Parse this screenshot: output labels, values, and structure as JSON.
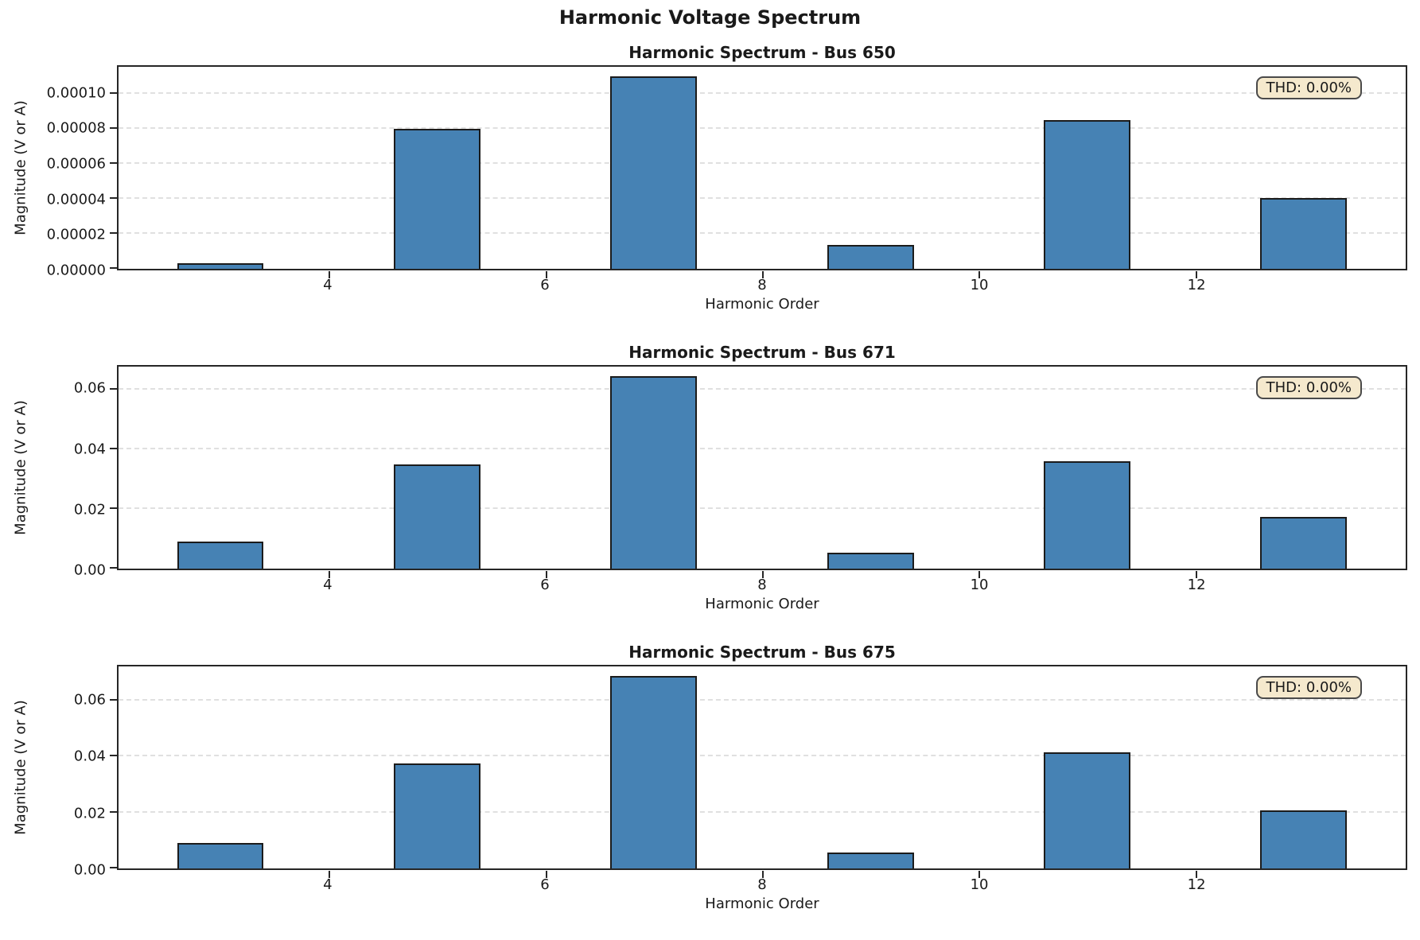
{
  "figure_title": "Harmonic Voltage Spectrum",
  "colors": {
    "bar_fill": "#4682b4",
    "bar_edge": "#1b1b1b",
    "grid": "#e0e0e0",
    "spine": "#262626",
    "thd_bg": "#f5e9cd",
    "thd_border": "#4a4a4a",
    "text": "#1a1a1a",
    "background": "#ffffff"
  },
  "chart_data": [
    {
      "type": "bar",
      "title": "Harmonic Spectrum - Bus 650",
      "xlabel": "Harmonic Order",
      "ylabel": "Magnitude (V or A)",
      "annotation": "THD: 0.00%",
      "x": [
        3,
        5,
        7,
        9,
        11,
        13
      ],
      "values": [
        3.4e-06,
        8e-05,
        0.00011,
        1.35e-05,
        8.5e-05,
        4.05e-05
      ],
      "bar_width": 0.8,
      "xlim": [
        2.06,
        13.94
      ],
      "ylim": [
        0,
        0.0001155
      ],
      "xticks": [
        4,
        6,
        8,
        10,
        12
      ],
      "yticks": [
        0,
        2e-05,
        4e-05,
        6e-05,
        8e-05,
        0.0001
      ],
      "ytick_labels": [
        "0.00000",
        "0.00002",
        "0.00004",
        "0.00006",
        "0.00008",
        "0.00010"
      ],
      "grid": "horizontal-dashed",
      "legend": "none"
    },
    {
      "type": "bar",
      "title": "Harmonic Spectrum - Bus 671",
      "xlabel": "Harmonic Order",
      "ylabel": "Magnitude (V or A)",
      "annotation": "THD: 0.00%",
      "x": [
        3,
        5,
        7,
        9,
        11,
        13
      ],
      "values": [
        0.009,
        0.035,
        0.0645,
        0.0053,
        0.036,
        0.0173
      ],
      "bar_width": 0.8,
      "xlim": [
        2.06,
        13.94
      ],
      "ylim": [
        0,
        0.0677
      ],
      "xticks": [
        4,
        6,
        8,
        10,
        12
      ],
      "yticks": [
        0,
        0.02,
        0.04,
        0.06
      ],
      "ytick_labels": [
        "0.00",
        "0.02",
        "0.04",
        "0.06"
      ],
      "grid": "horizontal-dashed",
      "legend": "none"
    },
    {
      "type": "bar",
      "title": "Harmonic Spectrum - Bus 675",
      "xlabel": "Harmonic Order",
      "ylabel": "Magnitude (V or A)",
      "annotation": "THD: 0.00%",
      "x": [
        3,
        5,
        7,
        9,
        11,
        13
      ],
      "values": [
        0.009,
        0.0375,
        0.0688,
        0.0057,
        0.0415,
        0.0207
      ],
      "bar_width": 0.8,
      "xlim": [
        2.06,
        13.94
      ],
      "ylim": [
        0,
        0.0722
      ],
      "xticks": [
        4,
        6,
        8,
        10,
        12
      ],
      "yticks": [
        0,
        0.02,
        0.04,
        0.06
      ],
      "ytick_labels": [
        "0.00",
        "0.02",
        "0.04",
        "0.06"
      ],
      "grid": "horizontal-dashed",
      "legend": "none"
    }
  ]
}
